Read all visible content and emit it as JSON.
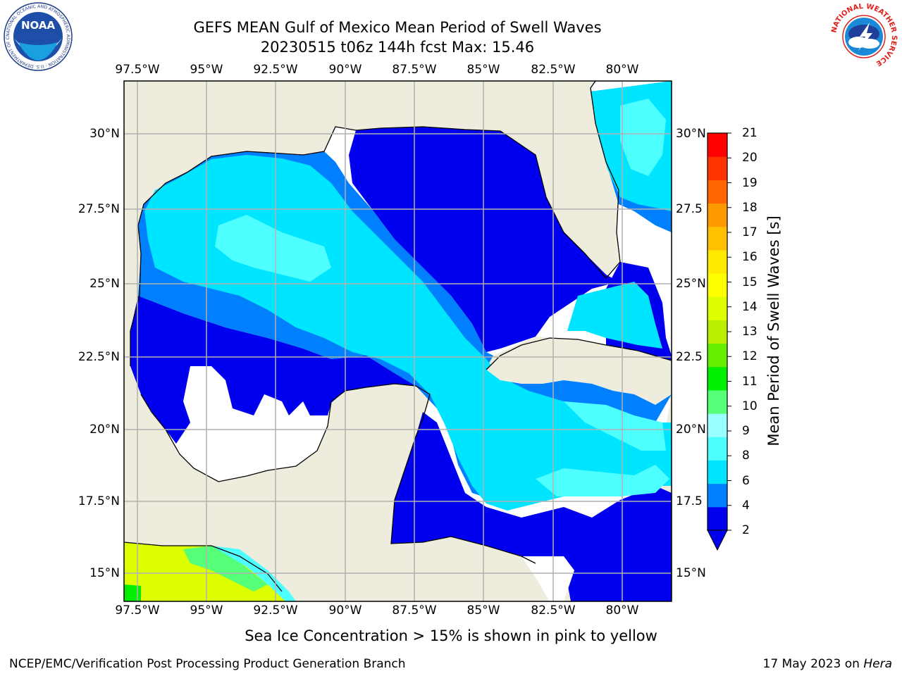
{
  "header": {
    "title_line1": "GEFS MEAN Gulf of Mexico Mean Period of Swell Waves",
    "title_line2": "20230515 t06z 144h fcst   Max: 15.46"
  },
  "map": {
    "lon_labels": [
      "97.5°W",
      "95°W",
      "92.5°W",
      "90°W",
      "87.5°W",
      "85°W",
      "82.5°W",
      "80°W"
    ],
    "lat_labels_left": [
      "30°N",
      "27.5°N",
      "25°N",
      "22.5°N",
      "20°N",
      "17.5°N",
      "15°N"
    ],
    "lat_labels_right": [
      "30°N",
      "27.5",
      "25°N",
      "22.5",
      "20°N",
      "17.5",
      "15°N"
    ],
    "land_color": "#eeecdc",
    "no_data_color": "#ffffff",
    "grid_color": "#b0b0b0"
  },
  "colorbar": {
    "units_label": "Mean Period of Swell Waves [s]",
    "ticks": [
      "21",
      "20",
      "19",
      "18",
      "17",
      "16",
      "15",
      "14",
      "13",
      "12",
      "11",
      "10",
      "9",
      "8",
      "6",
      "4",
      "2"
    ],
    "colors": [
      "#0000ee",
      "#0080ff",
      "#00e5ff",
      "#4dffff",
      "#99ffff",
      "#55ff77",
      "#00ee00",
      "#66ee00",
      "#bbee00",
      "#ddff00",
      "#ffff00",
      "#ffea00",
      "#ffc000",
      "#ff9900",
      "#ff6600",
      "#ff3300",
      "#ff0000"
    ]
  },
  "footer": {
    "sea_ice_note": "Sea Ice Concentration > 15% is shown in pink to yellow",
    "credit": "NCEP/EMC/Verification Post Processing Product Generation Branch",
    "date_prefix": "17 May 2023 on ",
    "machine": "Hera"
  },
  "logos": {
    "noaa_text": "NOAA",
    "noaa_ring_text": "NATIONAL OCEANIC AND ATMOSPHERIC ADMINISTRATION · U.S. DEPARTMENT OF COMMERCE",
    "nws_ring_text": "NATIONAL WEATHER SERVICE"
  }
}
